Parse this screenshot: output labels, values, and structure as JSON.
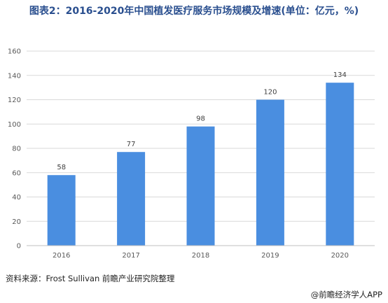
{
  "title": "图表2：2016-2020年中国植发医疗服务市场规模及增速(单位：亿元，%)",
  "source": "资料来源：Frost Sullivan 前瞻产业研究院整理",
  "credit": "@前瞻经济学人APP",
  "colors": {
    "bar": "#4a8ee0",
    "grid": "#d9d9d9",
    "title": "#2a4f8f"
  },
  "chart_data": {
    "type": "bar",
    "categories": [
      "2016",
      "2017",
      "2018",
      "2019",
      "2020"
    ],
    "values": [
      58,
      77,
      98,
      120,
      134
    ],
    "ylim": [
      0,
      160
    ],
    "yticks": [
      0,
      20,
      40,
      60,
      80,
      100,
      120,
      140,
      160
    ],
    "grid": true,
    "legend": "none"
  }
}
